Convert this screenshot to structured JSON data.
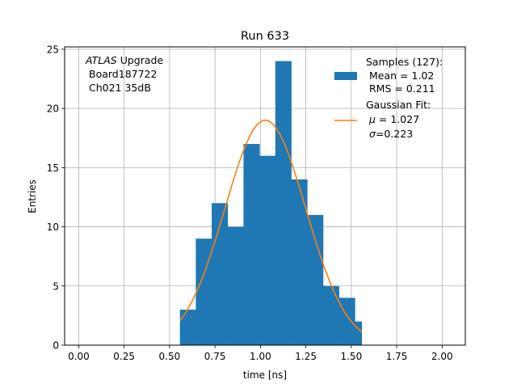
{
  "chart_data": {
    "type": "bar",
    "title": "Run 633",
    "xlabel": "time [ns]",
    "ylabel": "Entries",
    "xlim": [
      -0.0775,
      2.1275
    ],
    "ylim": [
      0,
      25.2
    ],
    "grid": true,
    "xticks": [
      "0.00",
      "0.25",
      "0.50",
      "0.75",
      "1.00",
      "1.25",
      "1.50",
      "1.75",
      "2.00"
    ],
    "xtick_values": [
      0,
      0.25,
      0.5,
      0.75,
      1.0,
      1.25,
      1.5,
      1.75,
      2.0
    ],
    "yticks": [
      "0",
      "5",
      "10",
      "15",
      "20",
      "25"
    ],
    "ytick_values": [
      0,
      5,
      10,
      15,
      20,
      25
    ],
    "annotation": {
      "line1_italic": "ATLAS",
      "line1_rest": " Upgrade",
      "line2": "Board187722",
      "line3": "Ch021 35dB"
    },
    "histogram": {
      "name": "Samples (127):",
      "color": "#1f77b4",
      "bin_edges": [
        0.557,
        0.6445,
        0.732,
        0.8195,
        0.907,
        0.9945,
        1.082,
        1.1695,
        1.257,
        1.3445,
        1.432,
        1.5195,
        1.557
      ],
      "counts": [
        3,
        9,
        12,
        10,
        17,
        16,
        24,
        14,
        11,
        5,
        4,
        2
      ]
    },
    "fit": {
      "name": "Gaussian Fit:",
      "color": "#ff7f0e",
      "mu": 1.027,
      "sigma": 0.223,
      "amplitude": 19.0,
      "x_range": [
        0.557,
        1.557
      ]
    },
    "legend": {
      "placement": "top-right",
      "hist_title": "Samples (127):",
      "hist_mean": "Mean = 1.02",
      "hist_rms": "RMS = 0.211",
      "fit_title": "Gaussian Fit:",
      "fit_mu_symbol": "μ",
      "fit_mu_value": " = 1.027",
      "fit_sigma_symbol": "σ",
      "fit_sigma_value": "=0.223"
    }
  }
}
